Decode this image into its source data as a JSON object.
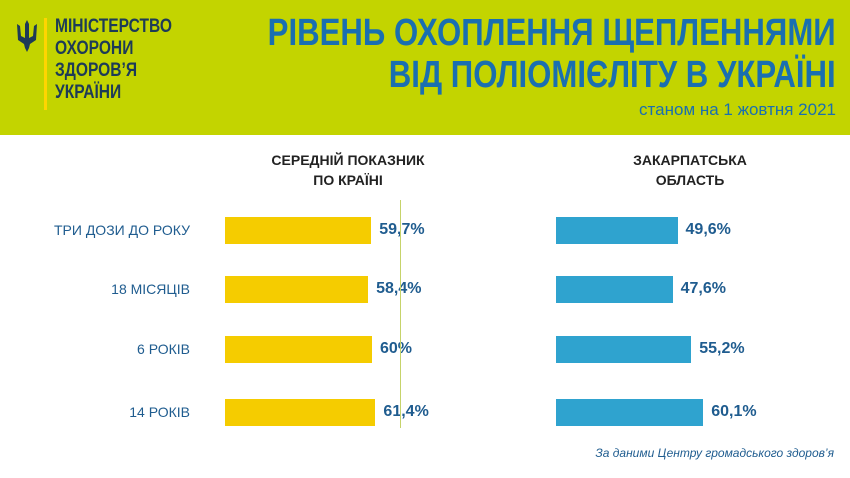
{
  "colors": {
    "header_bg": "#c3d400",
    "title": "#1a6fb0",
    "ministry_text": "#1d3b57",
    "emblem": "#1d3b57",
    "emblem_bar": "#ffd500",
    "national_bar": "#f5cc00",
    "region_bar": "#2fa3cf",
    "label_text": "#1f5c8f",
    "value_text": "#1f5c8f"
  },
  "header": {
    "ministry": "МІНІСТЕРСТВО\nОХОРОНИ\nЗДОРОВ’Я\nУКРАЇНИ",
    "title_line1": "РІВЕНЬ ОХОПЛЕННЯ ЩЕПЛЕННЯМИ",
    "title_line2": "ВІД ПОЛІОМІЄЛІТУ В УКРАЇНІ",
    "subtitle": "станом на 1 жовтня 2021"
  },
  "chart_data": {
    "type": "bar",
    "orientation": "horizontal",
    "categories": [
      "ТРИ ДОЗИ ДО РОКУ",
      "18 МІСЯЦІВ",
      "6 РОКІВ",
      "14 РОКІВ"
    ],
    "series": [
      {
        "name": "СЕРЕДНІЙ ПОКАЗНИК\nПО КРАЇНІ",
        "values": [
          59.7,
          58.4,
          60,
          61.4
        ],
        "labels": [
          "59,7%",
          "58,4%",
          "60%",
          "61,4%"
        ]
      },
      {
        "name": "ЗАКАРПАТСЬКА\nОБЛАСТЬ",
        "values": [
          49.6,
          47.6,
          55.2,
          60.1
        ],
        "labels": [
          "49,6%",
          "47,6%",
          "55,2%",
          "60,1%"
        ]
      }
    ],
    "grid": false
  },
  "source": "За даними Центру громадського здоров’я"
}
